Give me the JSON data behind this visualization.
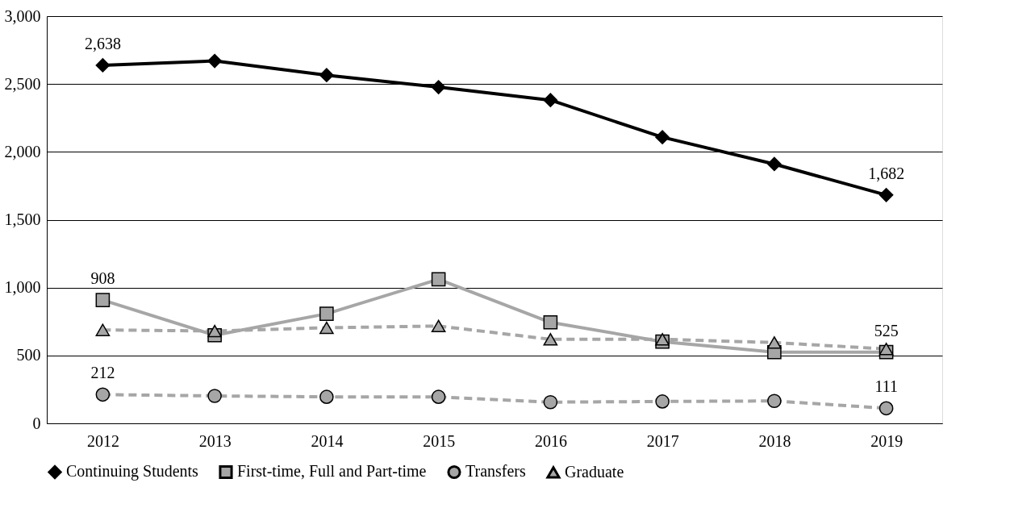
{
  "chart_data": {
    "type": "line",
    "categories": [
      "2012",
      "2013",
      "2014",
      "2015",
      "2016",
      "2017",
      "2018",
      "2019"
    ],
    "series": [
      {
        "name": "Continuing Students",
        "color": "#000000",
        "marker": "diamond",
        "line_style": "solid",
        "values": [
          2638,
          2670,
          2565,
          2477,
          2381,
          2108,
          1910,
          1682
        ],
        "value_labels": [
          "2,638",
          null,
          null,
          null,
          null,
          null,
          null,
          "1,682"
        ]
      },
      {
        "name": "First-time, Full and Part-time",
        "color": "#a6a6a6",
        "marker": "square",
        "line_style": "solid",
        "values": [
          908,
          649,
          807,
          1061,
          744,
          602,
          524,
          525
        ],
        "value_labels": [
          "908",
          null,
          null,
          null,
          null,
          null,
          null,
          "525"
        ]
      },
      {
        "name": "Transfers",
        "color": "#a6a6a6",
        "marker": "circle",
        "line_style": "dashed",
        "values": [
          212,
          202,
          195,
          195,
          156,
          161,
          165,
          111
        ],
        "value_labels": [
          "212",
          null,
          null,
          null,
          null,
          null,
          null,
          "111"
        ]
      },
      {
        "name": "Graduate",
        "color": "#a6a6a6",
        "marker": "triangle",
        "line_style": "dashed",
        "values": [
          688,
          680,
          704,
          717,
          619,
          619,
          595,
          548
        ]
      }
    ],
    "ylim": [
      0,
      3000
    ],
    "yticks": [
      0,
      500,
      {
        "value": 1000,
        "label": "1,000"
      },
      {
        "value": 1500,
        "label": "1,500"
      },
      {
        "value": 2000,
        "label": "2,000"
      },
      {
        "value": 2500,
        "label": "2,500"
      },
      {
        "value": 3000,
        "label": "3,000"
      }
    ],
    "grid": "y",
    "legend": "bottom"
  }
}
